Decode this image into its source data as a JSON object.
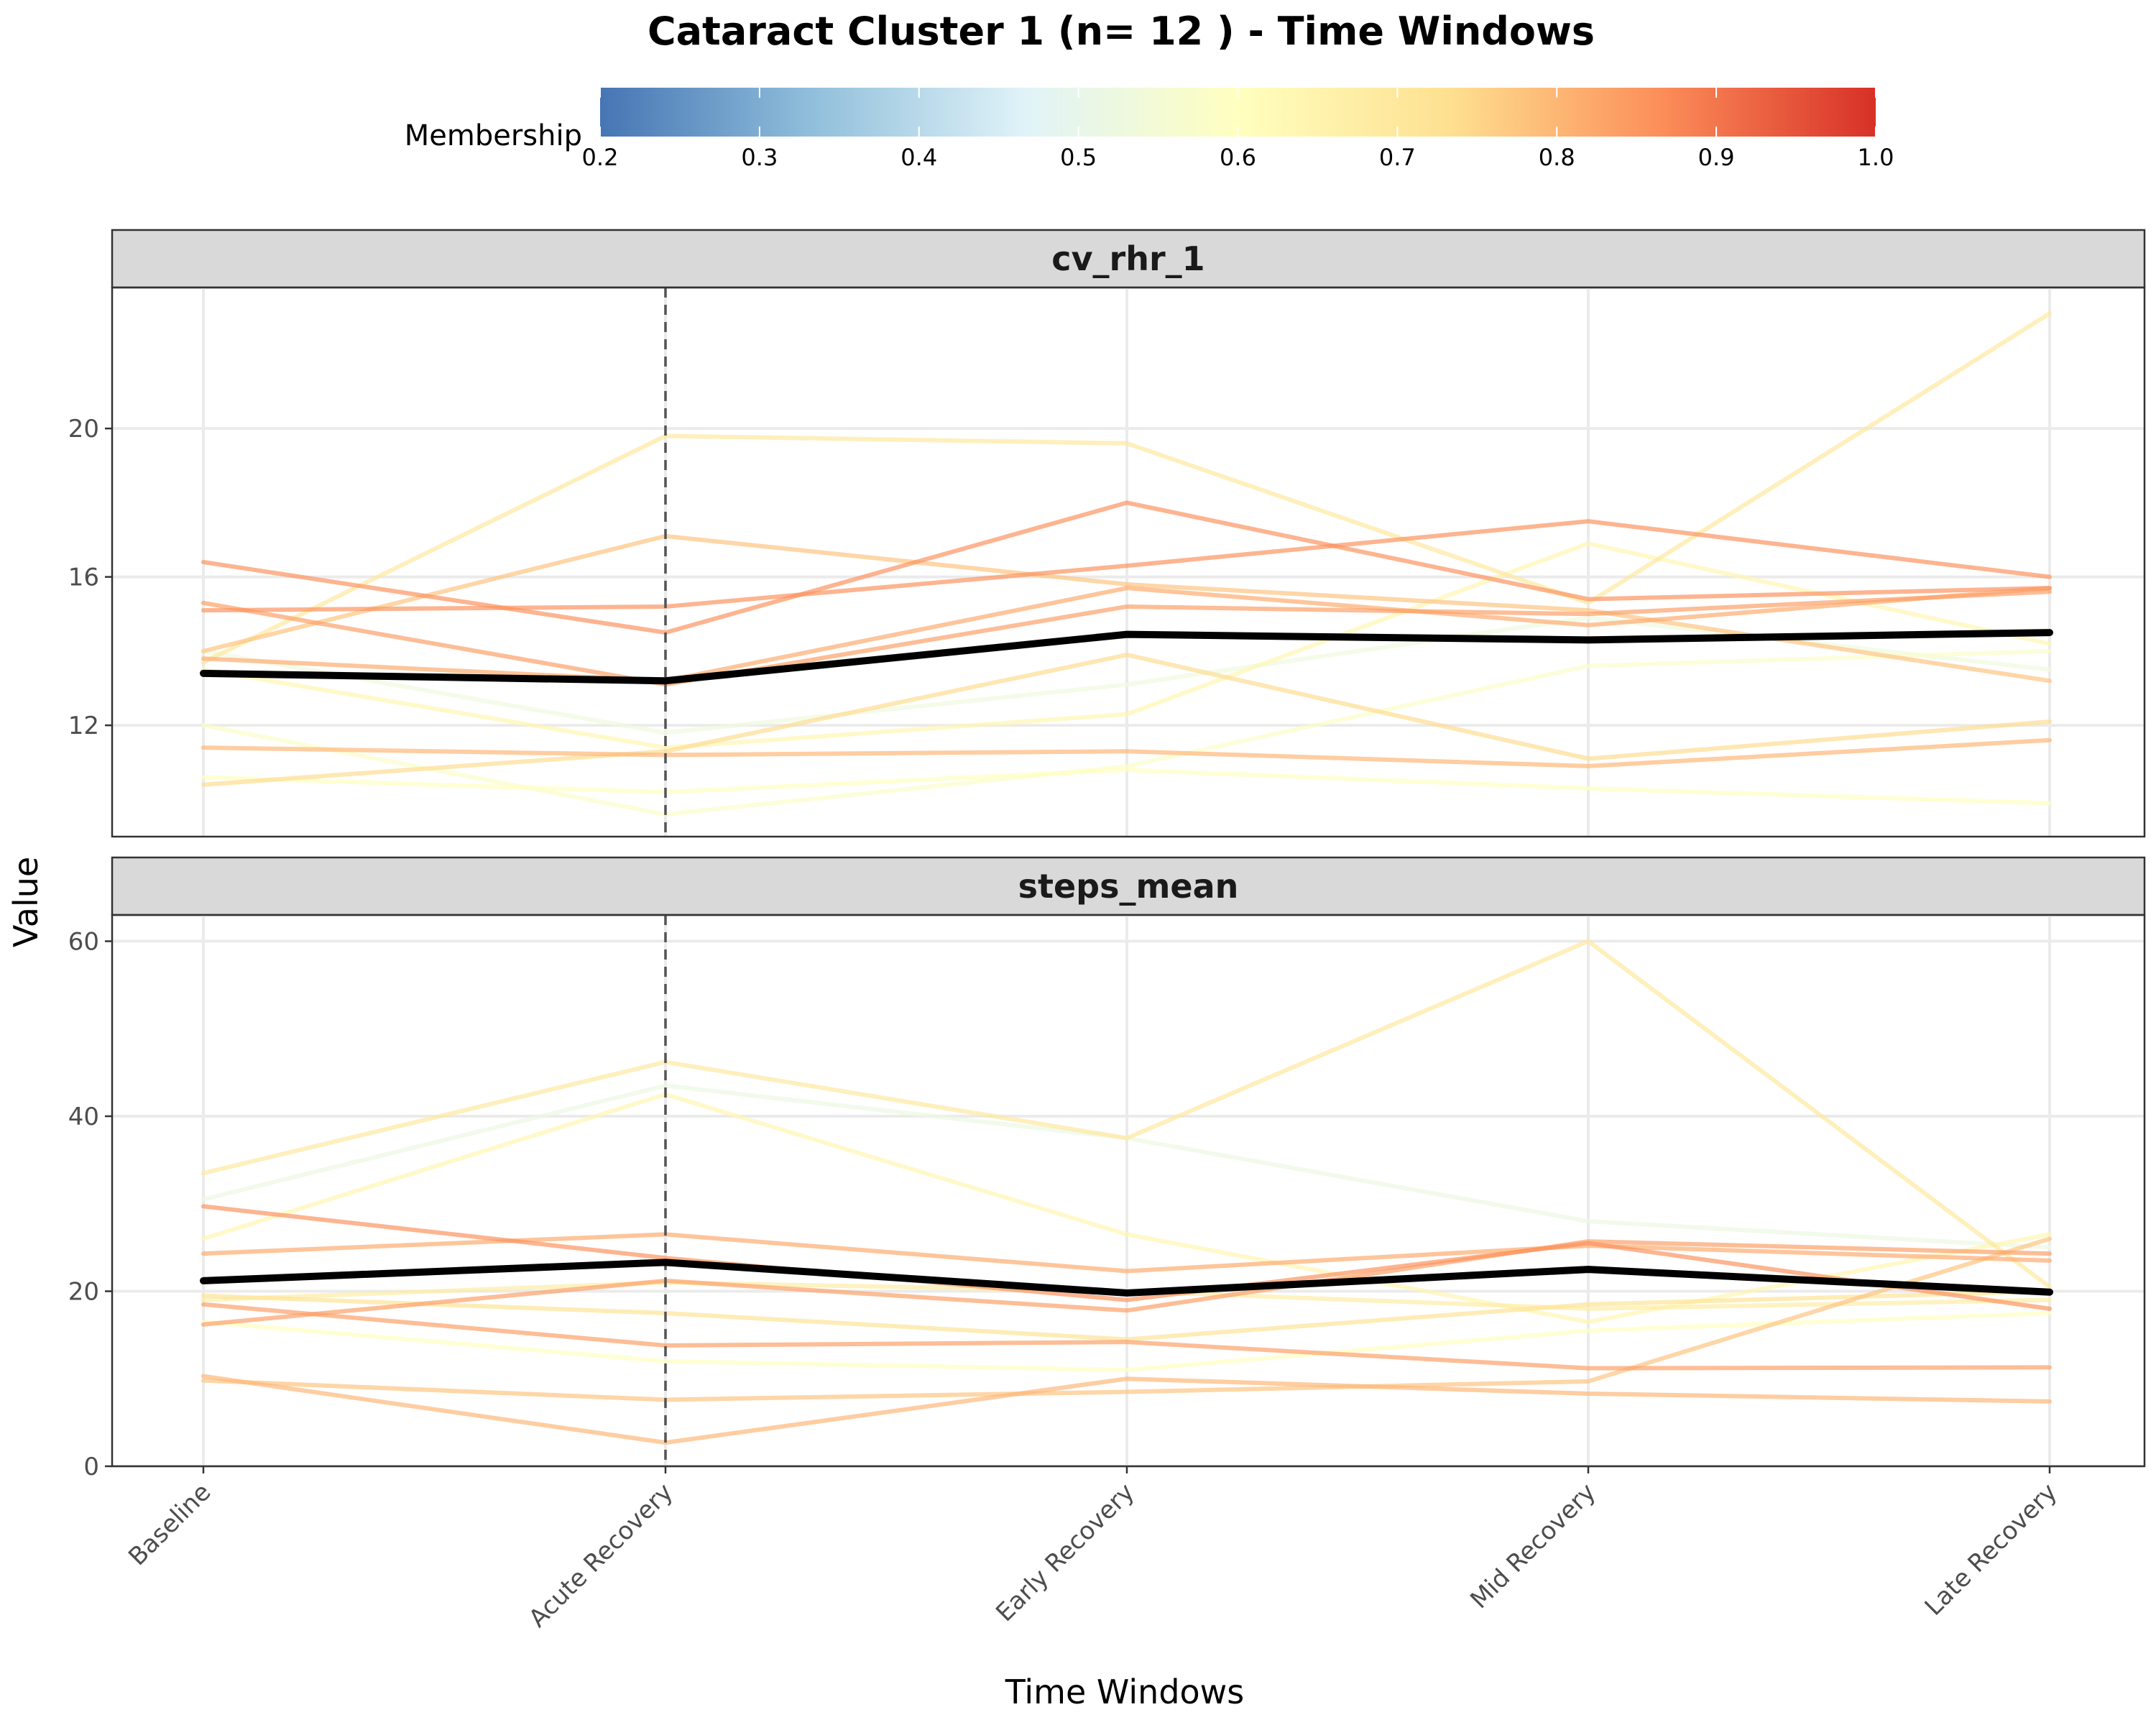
{
  "chart_data": {
    "type": "line",
    "title": "Cataract Cluster 1 (n= 12 ) - Time Windows",
    "xlabel": "Time Windows",
    "ylabel": "Value",
    "categories": [
      "Baseline",
      "Acute Recovery",
      "Early Recovery",
      "Mid Recovery",
      "Late Recovery"
    ],
    "legend": {
      "title": "Membership",
      "position": "top",
      "range": [
        0.2,
        1.0
      ],
      "ticks": [
        "0.2",
        "0.3",
        "0.4",
        "0.5",
        "0.6",
        "0.7",
        "0.8",
        "0.9",
        "1.0"
      ],
      "palette": [
        "#4575b4",
        "#91bfdb",
        "#e0f3f8",
        "#ffffbf",
        "#fee090",
        "#fc8d59",
        "#d73027"
      ]
    },
    "marker_line": {
      "category": "Acute Recovery",
      "style": "dashed"
    },
    "grid": true,
    "facets": [
      {
        "name": "cv_rhr_1",
        "ylim": [
          9.0,
          23.8
        ],
        "yticks": [
          12,
          16,
          20
        ],
        "mean": [
          13.4,
          13.2,
          14.45,
          14.3,
          14.5
        ],
        "series": [
          {
            "membership": 0.7,
            "values": [
              13.7,
              19.8,
              19.6,
              15.3,
              23.1
            ]
          },
          {
            "membership": 0.78,
            "values": [
              14.0,
              17.1,
              15.8,
              15.1,
              13.2
            ]
          },
          {
            "membership": 0.86,
            "values": [
              16.4,
              14.5,
              18.0,
              15.4,
              15.7
            ]
          },
          {
            "membership": 0.86,
            "values": [
              15.1,
              15.2,
              16.3,
              17.5,
              16.0
            ]
          },
          {
            "membership": 0.84,
            "values": [
              15.3,
              13.1,
              15.2,
              15.0,
              15.6
            ]
          },
          {
            "membership": 0.82,
            "values": [
              13.8,
              13.2,
              15.7,
              14.7,
              15.7
            ]
          },
          {
            "membership": 0.8,
            "values": [
              11.4,
              11.2,
              11.3,
              10.9,
              11.6
            ]
          },
          {
            "membership": 0.74,
            "values": [
              10.4,
              11.3,
              13.9,
              11.1,
              12.1
            ]
          },
          {
            "membership": 0.64,
            "values": [
              13.5,
              11.4,
              12.3,
              16.9,
              14.2
            ]
          },
          {
            "membership": 0.53,
            "values": [
              14.0,
              11.8,
              13.1,
              14.9,
              13.5
            ]
          },
          {
            "membership": 0.58,
            "values": [
              12.0,
              9.6,
              10.9,
              13.6,
              14.0
            ]
          },
          {
            "membership": 0.6,
            "values": [
              10.6,
              10.2,
              10.8,
              10.3,
              9.9
            ]
          }
        ]
      },
      {
        "name": "steps_mean",
        "ylim": [
          0,
          63
        ],
        "yticks": [
          0,
          20,
          40,
          60
        ],
        "mean": [
          21.2,
          23.3,
          19.8,
          22.5,
          19.9
        ],
        "series": [
          {
            "membership": 0.7,
            "values": [
              33.5,
              46.2,
              37.5,
              60.0,
              20.5
            ]
          },
          {
            "membership": 0.52,
            "values": [
              30.5,
              43.5,
              37.5,
              28.0,
              25.0
            ]
          },
          {
            "membership": 0.64,
            "values": [
              26.0,
              42.5,
              26.5,
              16.5,
              26.5
            ]
          },
          {
            "membership": 0.86,
            "values": [
              29.7,
              23.8,
              19.0,
              25.5,
              18.0
            ]
          },
          {
            "membership": 0.82,
            "values": [
              24.3,
              26.5,
              22.3,
              25.2,
              23.5
            ]
          },
          {
            "membership": 0.84,
            "values": [
              16.2,
              21.2,
              17.8,
              25.7,
              24.3
            ]
          },
          {
            "membership": 0.72,
            "values": [
              19.5,
              17.5,
              14.5,
              18.5,
              20.0
            ]
          },
          {
            "membership": 0.6,
            "values": [
              16.5,
              12.0,
              11.0,
              15.5,
              17.5
            ]
          },
          {
            "membership": 0.84,
            "values": [
              18.5,
              13.8,
              14.2,
              11.2,
              11.3
            ]
          },
          {
            "membership": 0.78,
            "values": [
              9.8,
              7.6,
              8.5,
              9.7,
              26.0
            ]
          },
          {
            "membership": 0.8,
            "values": [
              10.3,
              2.7,
              10.0,
              8.3,
              7.4
            ]
          },
          {
            "membership": 0.68,
            "values": [
              19.0,
              21.0,
              20.0,
              18.0,
              19.0
            ]
          }
        ]
      }
    ]
  }
}
